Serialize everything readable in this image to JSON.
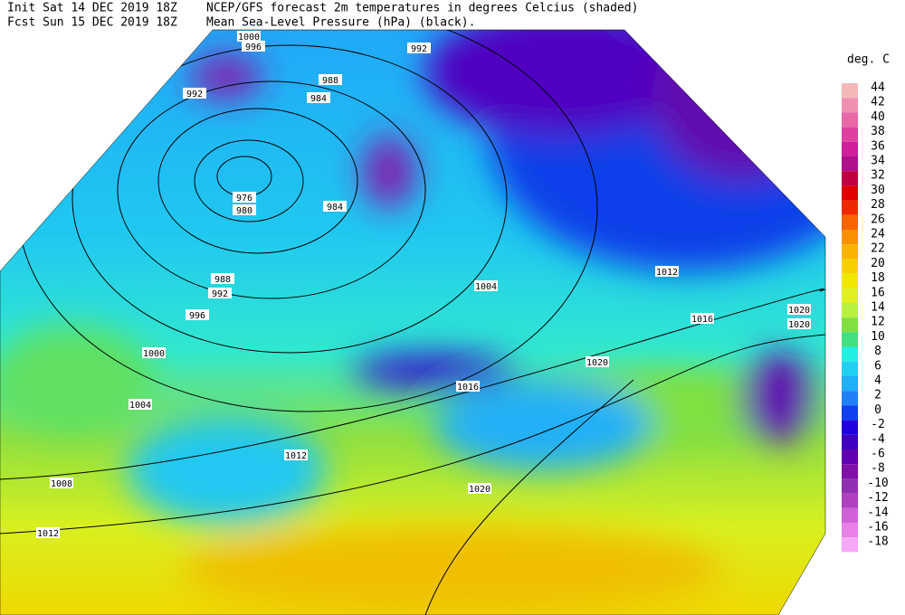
{
  "header": {
    "init": "Init  Sat 14 DEC 2019 18Z",
    "fcst": "Fcst Sun 15 DEC 2019 18Z",
    "title1": "NCEP/GFS forecast 2m temperatures in degrees Celcius (shaded)",
    "title2": "Mean Sea-Level Pressure (hPa) (black)."
  },
  "legend": {
    "title": "deg. C",
    "entries": [
      {
        "label": "44",
        "color": "#f4b8b8"
      },
      {
        "label": "42",
        "color": "#f090b0"
      },
      {
        "label": "40",
        "color": "#e868a8"
      },
      {
        "label": "38",
        "color": "#e040a0"
      },
      {
        "label": "36",
        "color": "#d0209c"
      },
      {
        "label": "34",
        "color": "#b0108c"
      },
      {
        "label": "32",
        "color": "#c00040"
      },
      {
        "label": "30",
        "color": "#e00000"
      },
      {
        "label": "28",
        "color": "#f02800"
      },
      {
        "label": "26",
        "color": "#f86400"
      },
      {
        "label": "24",
        "color": "#f89000"
      },
      {
        "label": "22",
        "color": "#f8b400"
      },
      {
        "label": "20",
        "color": "#f8d000"
      },
      {
        "label": "18",
        "color": "#f0e800"
      },
      {
        "label": "16",
        "color": "#e0f020"
      },
      {
        "label": "14",
        "color": "#b8f040"
      },
      {
        "label": "12",
        "color": "#80e040"
      },
      {
        "label": "10",
        "color": "#40e080"
      },
      {
        "label": "8",
        "color": "#20f0e0"
      },
      {
        "label": "6",
        "color": "#20d0f0"
      },
      {
        "label": "4",
        "color": "#20b0f8"
      },
      {
        "label": "2",
        "color": "#2080f8"
      },
      {
        "label": "0",
        "color": "#1040f0"
      },
      {
        "label": "-2",
        "color": "#2000e0"
      },
      {
        "label": "-4",
        "color": "#4000c0"
      },
      {
        "label": "-6",
        "color": "#6000b0"
      },
      {
        "label": "-8",
        "color": "#8010a8"
      },
      {
        "label": "-10",
        "color": "#9030b0"
      },
      {
        "label": "-12",
        "color": "#b040c0"
      },
      {
        "label": "-14",
        "color": "#d060d8"
      },
      {
        "label": "-16",
        "color": "#e880e8"
      },
      {
        "label": "-18",
        "color": "#f8a8f8"
      }
    ]
  },
  "isobar_labels": [
    "1000",
    "996",
    "992",
    "988",
    "984",
    "992",
    "976",
    "980",
    "984",
    "988",
    "992",
    "996",
    "1000",
    "1004",
    "1008",
    "1012",
    "1012",
    "1020",
    "1016",
    "1020",
    "1016",
    "1012",
    "1004",
    "1020",
    "1020"
  ]
}
